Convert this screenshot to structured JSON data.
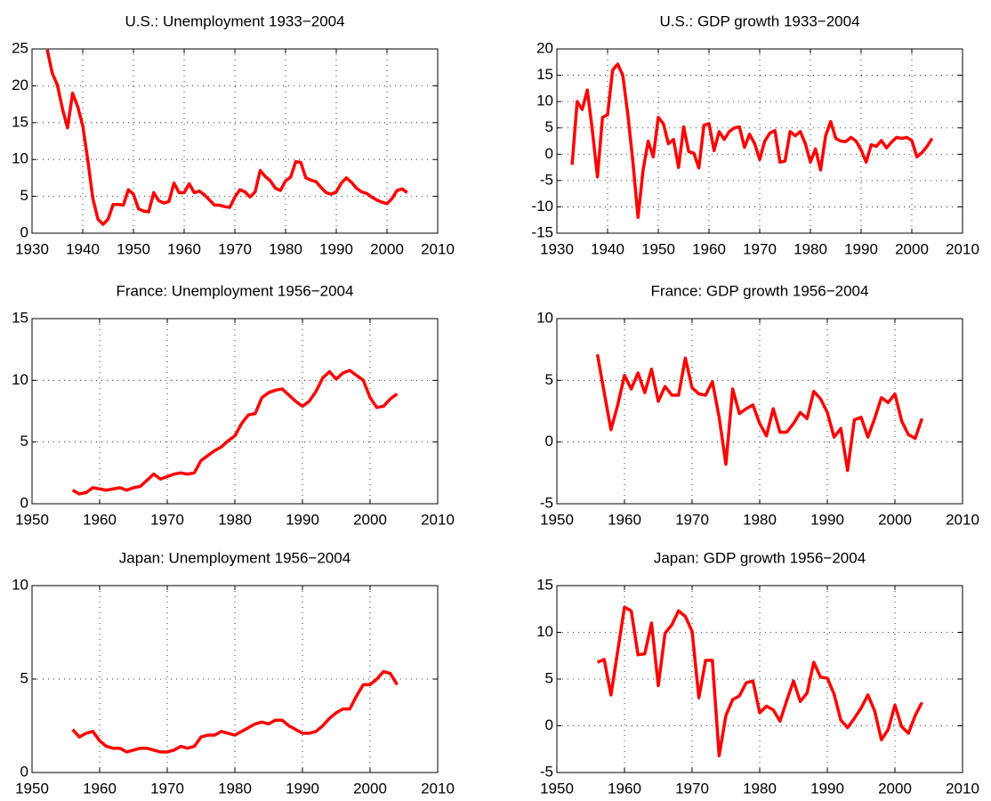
{
  "chart_data": [
    {
      "type": "line",
      "title": "U.S.: Unemployment 1933−2004",
      "x": [
        1933,
        1934,
        1935,
        1936,
        1937,
        1938,
        1939,
        1940,
        1941,
        1942,
        1943,
        1944,
        1945,
        1946,
        1947,
        1948,
        1949,
        1950,
        1951,
        1952,
        1953,
        1954,
        1955,
        1956,
        1957,
        1958,
        1959,
        1960,
        1961,
        1962,
        1963,
        1964,
        1965,
        1966,
        1967,
        1968,
        1969,
        1970,
        1971,
        1972,
        1973,
        1974,
        1975,
        1976,
        1977,
        1978,
        1979,
        1980,
        1981,
        1982,
        1983,
        1984,
        1985,
        1986,
        1987,
        1988,
        1989,
        1990,
        1991,
        1992,
        1993,
        1994,
        1995,
        1996,
        1997,
        1998,
        1999,
        2000,
        2001,
        2002,
        2003,
        2004
      ],
      "series": [
        {
          "color": "#ff0000",
          "values": [
            24.9,
            21.7,
            20.1,
            16.9,
            14.3,
            19.0,
            17.2,
            14.6,
            9.9,
            4.7,
            1.9,
            1.2,
            1.9,
            3.9,
            3.9,
            3.8,
            5.9,
            5.3,
            3.3,
            3.0,
            2.9,
            5.5,
            4.4,
            4.1,
            4.3,
            6.8,
            5.5,
            5.5,
            6.7,
            5.5,
            5.7,
            5.2,
            4.5,
            3.8,
            3.8,
            3.6,
            3.5,
            4.9,
            5.9,
            5.6,
            4.9,
            5.6,
            8.5,
            7.7,
            7.1,
            6.1,
            5.8,
            7.1,
            7.6,
            9.7,
            9.6,
            7.5,
            7.2,
            7.0,
            6.2,
            5.5,
            5.3,
            5.6,
            6.8,
            7.5,
            6.9,
            6.1,
            5.6,
            5.4,
            4.9,
            4.5,
            4.2,
            4.0,
            4.7,
            5.8,
            6.0,
            5.5
          ]
        }
      ],
      "xlim": [
        1930,
        2010
      ],
      "xticks": [
        1930,
        1940,
        1950,
        1960,
        1970,
        1980,
        1990,
        2000,
        2010
      ],
      "ylim": [
        0,
        25
      ],
      "yticks": [
        0,
        5,
        10,
        15,
        20,
        25
      ],
      "grid": true
    },
    {
      "type": "line",
      "title": "U.S.: GDP growth 1933−2004",
      "x": [
        1933,
        1934,
        1935,
        1936,
        1937,
        1938,
        1939,
        1940,
        1941,
        1942,
        1943,
        1944,
        1945,
        1946,
        1947,
        1948,
        1949,
        1950,
        1951,
        1952,
        1953,
        1954,
        1955,
        1956,
        1957,
        1958,
        1959,
        1960,
        1961,
        1962,
        1963,
        1964,
        1965,
        1966,
        1967,
        1968,
        1969,
        1970,
        1971,
        1972,
        1973,
        1974,
        1975,
        1976,
        1977,
        1978,
        1979,
        1980,
        1981,
        1982,
        1983,
        1984,
        1985,
        1986,
        1987,
        1988,
        1989,
        1990,
        1991,
        1992,
        1993,
        1994,
        1995,
        1996,
        1997,
        1998,
        1999,
        2000,
        2001,
        2002,
        2003,
        2004
      ],
      "series": [
        {
          "color": "#ff0000",
          "values": [
            -2,
            10,
            8.5,
            12.2,
            4.5,
            -4.3,
            7,
            7.5,
            16,
            17.1,
            15,
            7.5,
            -1.5,
            -12,
            -3,
            2.5,
            -0.5,
            7,
            5.8,
            2,
            2.8,
            -2.5,
            5.2,
            0.5,
            0.2,
            -2.6,
            5.5,
            5.8,
            0.7,
            4.3,
            2.8,
            4.3,
            5,
            5.2,
            1.3,
            3.8,
            2,
            -1,
            2.5,
            4,
            4.5,
            -1.5,
            -1.3,
            4.3,
            3.5,
            4.3,
            2,
            -1.5,
            1,
            -3,
            3.5,
            6.2,
            3,
            2.5,
            2.4,
            3.2,
            2.5,
            0.8,
            -1.5,
            1.8,
            1.5,
            2.6,
            1.2,
            2.3,
            3.2,
            3,
            3.2,
            2.6,
            -0.5,
            0.3,
            1.5,
            3
          ]
        }
      ],
      "xlim": [
        1930,
        2010
      ],
      "xticks": [
        1930,
        1940,
        1950,
        1960,
        1970,
        1980,
        1990,
        2000,
        2010
      ],
      "ylim": [
        -15,
        20
      ],
      "yticks": [
        -15,
        -10,
        -5,
        0,
        5,
        10,
        15,
        20
      ],
      "grid": true
    },
    {
      "type": "line",
      "title": "France: Unemployment 1956−2004",
      "x": [
        1956,
        1957,
        1958,
        1959,
        1960,
        1961,
        1962,
        1963,
        1964,
        1965,
        1966,
        1967,
        1968,
        1969,
        1970,
        1971,
        1972,
        1973,
        1974,
        1975,
        1976,
        1977,
        1978,
        1979,
        1980,
        1981,
        1982,
        1983,
        1984,
        1985,
        1986,
        1987,
        1988,
        1989,
        1990,
        1991,
        1992,
        1993,
        1994,
        1995,
        1996,
        1997,
        1998,
        1999,
        2000,
        2001,
        2002,
        2003,
        2004
      ],
      "series": [
        {
          "color": "#ff0000",
          "values": [
            1.1,
            0.8,
            0.9,
            1.3,
            1.2,
            1.1,
            1.2,
            1.3,
            1.1,
            1.3,
            1.4,
            1.9,
            2.4,
            2.0,
            2.2,
            2.4,
            2.5,
            2.4,
            2.5,
            3.5,
            3.9,
            4.3,
            4.6,
            5.1,
            5.5,
            6.5,
            7.2,
            7.3,
            8.6,
            9.0,
            9.2,
            9.3,
            8.8,
            8.3,
            7.9,
            8.3,
            9.1,
            10.2,
            10.7,
            10.1,
            10.6,
            10.8,
            10.4,
            10.0,
            8.6,
            7.8,
            7.9,
            8.5,
            8.9
          ]
        }
      ],
      "xlim": [
        1950,
        2010
      ],
      "xticks": [
        1950,
        1960,
        1970,
        1980,
        1990,
        2000,
        2010
      ],
      "ylim": [
        0,
        15
      ],
      "yticks": [
        0,
        5,
        10,
        15
      ],
      "grid": true
    },
    {
      "type": "line",
      "title": "France: GDP growth 1956−2004",
      "x": [
        1956,
        1957,
        1958,
        1959,
        1960,
        1961,
        1962,
        1963,
        1964,
        1965,
        1966,
        1967,
        1968,
        1969,
        1970,
        1971,
        1972,
        1973,
        1974,
        1975,
        1976,
        1977,
        1978,
        1979,
        1980,
        1981,
        1982,
        1983,
        1984,
        1985,
        1986,
        1987,
        1988,
        1989,
        1990,
        1991,
        1992,
        1993,
        1994,
        1995,
        1996,
        1997,
        1998,
        1999,
        2000,
        2001,
        2002,
        2003,
        2004
      ],
      "series": [
        {
          "color": "#ff0000",
          "values": [
            7.1,
            4.0,
            1.0,
            3.0,
            5.4,
            4.3,
            5.6,
            4.0,
            5.9,
            3.3,
            4.5,
            3.8,
            3.8,
            6.8,
            4.4,
            3.9,
            3.8,
            4.9,
            2.0,
            -1.8,
            4.3,
            2.3,
            2.7,
            3.0,
            1.5,
            0.5,
            2.7,
            0.8,
            0.8,
            1.5,
            2.4,
            1.9,
            4.1,
            3.5,
            2.4,
            0.4,
            1.1,
            -2.3,
            1.8,
            2.0,
            0.4,
            1.9,
            3.6,
            3.2,
            3.9,
            1.7,
            0.6,
            0.3,
            1.9
          ]
        }
      ],
      "xlim": [
        1950,
        2010
      ],
      "xticks": [
        1950,
        1960,
        1970,
        1980,
        1990,
        2000,
        2010
      ],
      "ylim": [
        -5,
        10
      ],
      "yticks": [
        -5,
        0,
        5,
        10
      ],
      "grid": true
    },
    {
      "type": "line",
      "title": "Japan: Unemployment 1956−2004",
      "x": [
        1956,
        1957,
        1958,
        1959,
        1960,
        1961,
        1962,
        1963,
        1964,
        1965,
        1966,
        1967,
        1968,
        1969,
        1970,
        1971,
        1972,
        1973,
        1974,
        1975,
        1976,
        1977,
        1978,
        1979,
        1980,
        1981,
        1982,
        1983,
        1984,
        1985,
        1986,
        1987,
        1988,
        1989,
        1990,
        1991,
        1992,
        1993,
        1994,
        1995,
        1996,
        1997,
        1998,
        1999,
        2000,
        2001,
        2002,
        2003,
        2004
      ],
      "series": [
        {
          "color": "#ff0000",
          "values": [
            2.3,
            1.9,
            2.1,
            2.2,
            1.7,
            1.4,
            1.3,
            1.3,
            1.1,
            1.2,
            1.3,
            1.3,
            1.2,
            1.1,
            1.1,
            1.2,
            1.4,
            1.3,
            1.4,
            1.9,
            2.0,
            2.0,
            2.2,
            2.1,
            2.0,
            2.2,
            2.4,
            2.6,
            2.7,
            2.6,
            2.8,
            2.8,
            2.5,
            2.3,
            2.1,
            2.1,
            2.2,
            2.5,
            2.9,
            3.2,
            3.4,
            3.4,
            4.1,
            4.7,
            4.7,
            5.0,
            5.4,
            5.3,
            4.7
          ]
        }
      ],
      "xlim": [
        1950,
        2010
      ],
      "xticks": [
        1950,
        1960,
        1970,
        1980,
        1990,
        2000,
        2010
      ],
      "ylim": [
        0,
        10
      ],
      "yticks": [
        0,
        5,
        10
      ],
      "grid": true
    },
    {
      "type": "line",
      "title": "Japan: GDP growth 1956−2004",
      "x": [
        1956,
        1957,
        1958,
        1959,
        1960,
        1961,
        1962,
        1963,
        1964,
        1965,
        1966,
        1967,
        1968,
        1969,
        1970,
        1971,
        1972,
        1973,
        1974,
        1975,
        1976,
        1977,
        1978,
        1979,
        1980,
        1981,
        1982,
        1983,
        1984,
        1985,
        1986,
        1987,
        1988,
        1989,
        1990,
        1991,
        1992,
        1993,
        1994,
        1995,
        1996,
        1997,
        1998,
        1999,
        2000,
        2001,
        2002,
        2003,
        2004
      ],
      "series": [
        {
          "color": "#ff0000",
          "values": [
            6.8,
            7.1,
            3.3,
            8.0,
            12.7,
            12.3,
            7.6,
            7.7,
            11.0,
            4.3,
            9.9,
            10.8,
            12.3,
            11.7,
            10.1,
            3.0,
            7.0,
            7.0,
            -3.2,
            1.1,
            2.8,
            3.2,
            4.6,
            4.8,
            1.4,
            2.1,
            1.7,
            0.5,
            2.7,
            4.8,
            2.6,
            3.5,
            6.8,
            5.2,
            5.1,
            3.4,
            0.6,
            -0.2,
            0.8,
            1.9,
            3.3,
            1.6,
            -1.5,
            -0.4,
            2.2,
            -0.1,
            -0.8,
            1.1,
            2.5
          ]
        }
      ],
      "xlim": [
        1950,
        2010
      ],
      "xticks": [
        1950,
        1960,
        1970,
        1980,
        1990,
        2000,
        2010
      ],
      "ylim": [
        -5,
        15
      ],
      "yticks": [
        -5,
        0,
        5,
        10,
        15
      ],
      "grid": true
    }
  ]
}
